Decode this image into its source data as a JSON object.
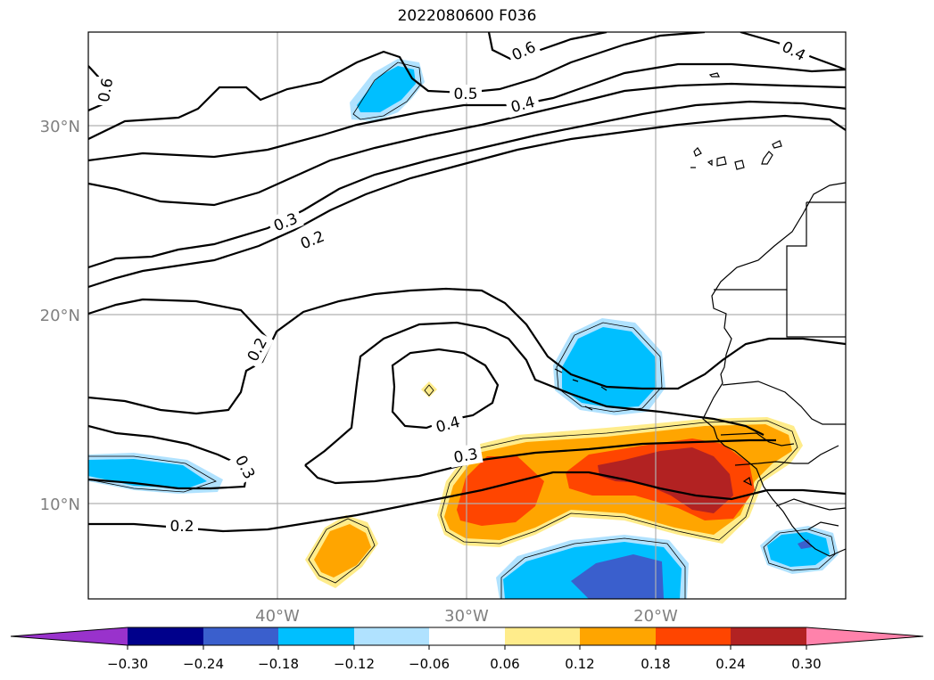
{
  "title": "2022080600 F036",
  "map": {
    "lat_labels": [
      "30°N",
      "20°N",
      "10°N"
    ],
    "lon_labels": [
      "40°W",
      "30°W",
      "20°W"
    ],
    "extent": {
      "lon": [
        -50,
        -10
      ],
      "lat": [
        5,
        35
      ]
    },
    "gridlines": true,
    "contour_labels": [
      "0.6",
      "0.6",
      "0.5",
      "0.4",
      "0.4",
      "0.3",
      "0.2",
      "0.2",
      "0.4",
      "0.3",
      "0.3",
      "0.2"
    ]
  },
  "colorbar": {
    "ticks": [
      "−0.30",
      "−0.24",
      "−0.18",
      "−0.12",
      "−0.06",
      "0.06",
      "0.12",
      "0.18",
      "0.24",
      "0.30"
    ],
    "colors": {
      "under": "#9932cc",
      "bins": [
        "#00008b",
        "#3a5fcd",
        "#00bfff",
        "#b0e2ff",
        "#ffffff",
        "#ffec8b",
        "#ffa500",
        "#ff4500",
        "#b22222"
      ],
      "over": "#ff82ab"
    }
  },
  "palette": {
    "neg_dark": "#3a5fcd",
    "neg_mid": "#00bfff",
    "neg_light": "#b0e2ff",
    "pos_light": "#ffec8b",
    "pos_mid": "#ffa500",
    "pos_strong": "#ff4500",
    "pos_max": "#b22222"
  }
}
